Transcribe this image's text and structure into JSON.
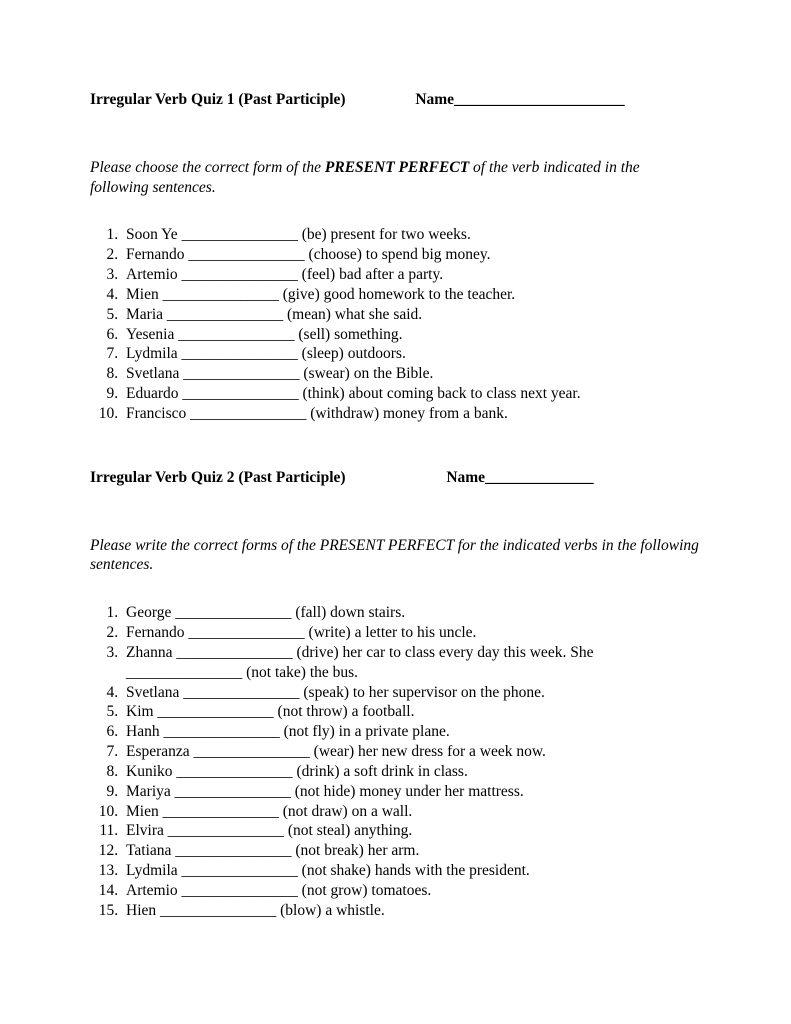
{
  "quiz1": {
    "title": "Irregular Verb Quiz 1 (Past Participle)",
    "name_label": "Name",
    "name_line": "______________________",
    "instructions_pre": "Please choose the correct form of the ",
    "instructions_emph": "PRESENT PERFECT",
    "instructions_post": " of the verb indicated in the following sentences.",
    "items": [
      "Soon Ye _______________ (be) present for two weeks.",
      "Fernando _______________ (choose) to spend big money.",
      "Artemio _______________ (feel) bad after a party.",
      "Mien _______________ (give) good homework to the teacher.",
      "Maria _______________ (mean) what she said.",
      "Yesenia _______________ (sell) something.",
      "Lydmila _______________ (sleep) outdoors.",
      "Svetlana _______________ (swear) on the Bible.",
      "Eduardo _______________ (think) about coming back to class next year.",
      "Francisco _______________ (withdraw) money from a bank."
    ]
  },
  "quiz2": {
    "title": "Irregular Verb Quiz 2 (Past Participle)",
    "name_label": "Name",
    "name_line": "______________",
    "instructions": "Please write the correct forms of the PRESENT PERFECT for the indicated verbs in the following sentences.",
    "items": [
      "George _______________ (fall) down stairs.",
      "Fernando _______________ (write) a letter to his uncle.",
      "Zhanna _______________ (drive) her car to class every day this week. She _______________ (not take) the bus.",
      "Svetlana _______________ (speak) to her supervisor on the phone.",
      "Kim _______________ (not throw) a football.",
      "Hanh _______________ (not fly) in a private plane.",
      "Esperanza _______________ (wear) her new dress for a week now.",
      "Kuniko _______________ (drink) a soft drink in class.",
      "Mariya _______________ (not hide) money under her mattress.",
      "Mien _______________ (not draw) on a wall.",
      "Elvira _______________ (not steal) anything.",
      "Tatiana _______________ (not break) her arm.",
      "Lydmila _______________ (not shake) hands with the president.",
      "Artemio _______________ (not grow) tomatoes.",
      "Hien _______________ (blow) a whistle."
    ]
  },
  "layout": {
    "header1_spacer": "                  ",
    "header2_spacer": "                          "
  }
}
